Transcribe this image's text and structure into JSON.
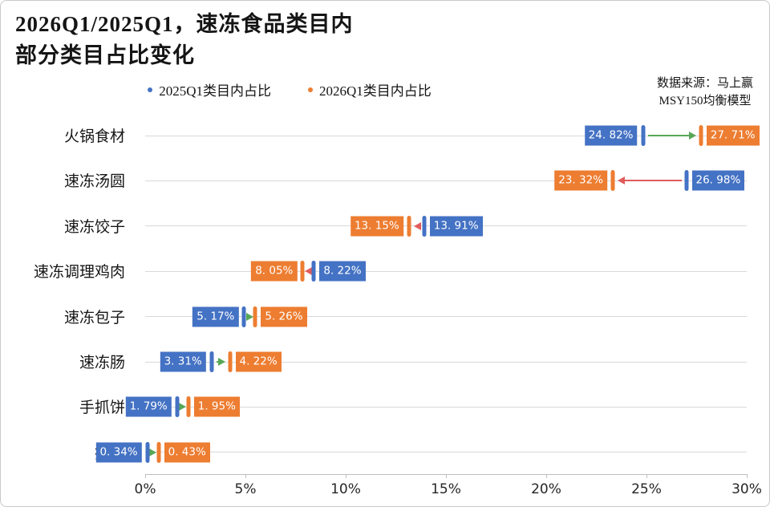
{
  "frame": {
    "background": "#ffffff",
    "border_color": "#c9c9c9"
  },
  "title": {
    "line1": "2026Q1/2025Q1，速冻食品类目内",
    "line2": "部分类目占比变化"
  },
  "legend": {
    "items": [
      {
        "label": "2025Q1类目内占比",
        "color": "#4472C4"
      },
      {
        "label": "2026Q1类目内占比",
        "color": "#ED7D31"
      }
    ]
  },
  "source": {
    "line1": "数据来源：马上赢",
    "line2": "MSY150均衡模型"
  },
  "chart_data": {
    "type": "dumbbell-arrow-horizontal",
    "title": "2026Q1/2025Q1，速冻食品类目内部分类目占比变化",
    "legend_position": "top-center",
    "grid": "horizontal-per-category",
    "x_axis": {
      "min": 0,
      "max": 30,
      "unit": "%",
      "ticks": [
        {
          "value": 0,
          "label": "0%"
        },
        {
          "value": 5,
          "label": "5%"
        },
        {
          "value": 10,
          "label": "10%"
        },
        {
          "value": 15,
          "label": "15%"
        },
        {
          "value": 20,
          "label": "20%"
        },
        {
          "value": 25,
          "label": "25%"
        },
        {
          "value": 30,
          "label": "30%"
        }
      ]
    },
    "series": [
      {
        "name": "2025Q1类目内占比",
        "color": "#4472C4"
      },
      {
        "name": "2026Q1类目内占比",
        "color": "#ED7D31"
      }
    ],
    "categories": [
      "火锅食材",
      "速冻汤圆",
      "速冻饺子",
      "速冻调理鸡肉",
      "速冻包子",
      "速冻肠",
      "手抓饼",
      "披萨"
    ],
    "rows": [
      {
        "category": "火锅食材",
        "q1_2025": 24.82,
        "q1_2026": 27.71,
        "label_2025": "24. 82%",
        "label_2026": "27. 71%",
        "direction": "up"
      },
      {
        "category": "速冻汤圆",
        "q1_2025": 26.98,
        "q1_2026": 23.32,
        "label_2025": "26. 98%",
        "label_2026": "23. 32%",
        "direction": "down"
      },
      {
        "category": "速冻饺子",
        "q1_2025": 13.91,
        "q1_2026": 13.15,
        "label_2025": "13. 91%",
        "label_2026": "13. 15%",
        "direction": "down"
      },
      {
        "category": "速冻调理鸡肉",
        "q1_2025": 8.22,
        "q1_2026": 8.05,
        "label_2025": "8. 22%",
        "label_2026": "8. 05%",
        "direction": "down"
      },
      {
        "category": "速冻包子",
        "q1_2025": 5.17,
        "q1_2026": 5.26,
        "label_2025": "5. 17%",
        "label_2026": "5. 26%",
        "direction": "up"
      },
      {
        "category": "速冻肠",
        "q1_2025": 3.31,
        "q1_2026": 4.22,
        "label_2025": "3. 31%",
        "label_2026": "4. 22%",
        "direction": "up"
      },
      {
        "category": "手抓饼",
        "q1_2025": 1.79,
        "q1_2026": 1.95,
        "label_2025": "1. 79%",
        "label_2026": "1. 95%",
        "direction": "up"
      },
      {
        "category": "披萨",
        "q1_2025": 0.34,
        "q1_2026": 0.43,
        "label_2025": "0. 34%",
        "label_2026": "0. 43%",
        "direction": "up"
      }
    ],
    "colors": {
      "series_2025": "#4472C4",
      "series_2026": "#ED7D31",
      "increase_arrow": "#57A757",
      "decrease_arrow": "#E15C5C",
      "gridline": "#D9D9D9",
      "axis": "#BFBFBF"
    }
  }
}
